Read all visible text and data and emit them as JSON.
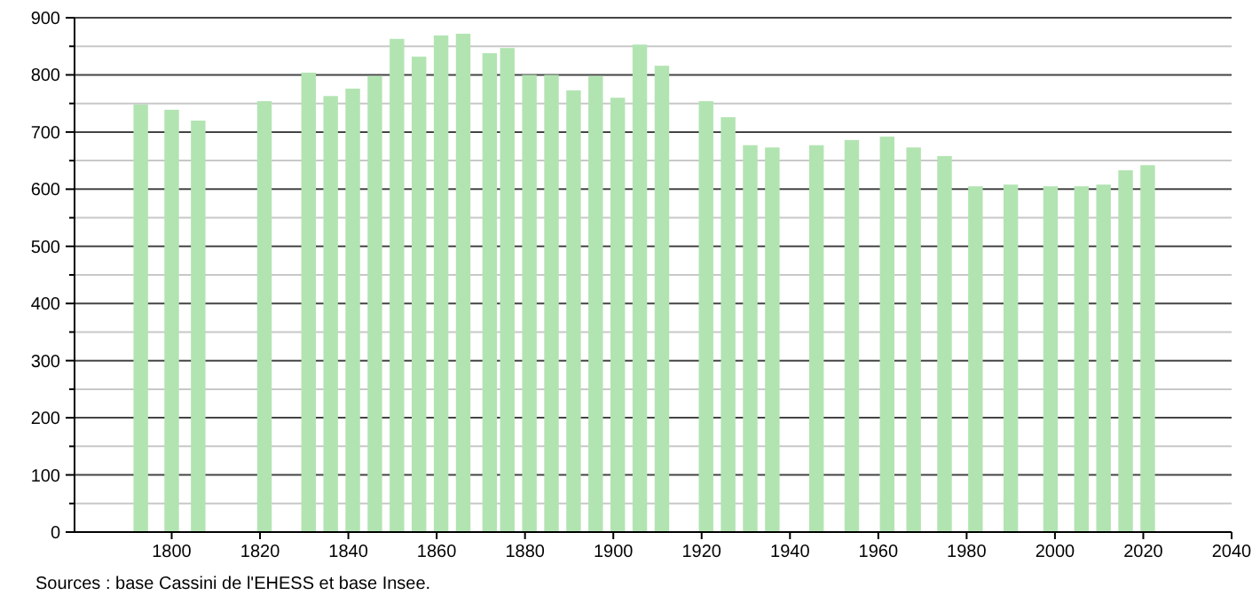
{
  "chart_data": {
    "type": "bar",
    "color": "#b2e4b2",
    "x": [
      1793,
      1800,
      1806,
      1821,
      1831,
      1836,
      1841,
      1846,
      1851,
      1856,
      1861,
      1866,
      1872,
      1876,
      1881,
      1886,
      1891,
      1896,
      1901,
      1906,
      1911,
      1921,
      1926,
      1931,
      1936,
      1946,
      1954,
      1962,
      1968,
      1975,
      1982,
      1990,
      1999,
      2006,
      2011,
      2016,
      2021
    ],
    "values": [
      748,
      739,
      720,
      754,
      804,
      763,
      776,
      798,
      863,
      832,
      869,
      872,
      838,
      847,
      800,
      800,
      773,
      798,
      760,
      853,
      816,
      754,
      726,
      677,
      673,
      677,
      686,
      692,
      673,
      658,
      605,
      608,
      605,
      605,
      608,
      633,
      642
    ],
    "xlim": [
      1778,
      2040
    ],
    "xticks": [
      1800,
      1820,
      1840,
      1860,
      1880,
      1900,
      1920,
      1940,
      1960,
      1980,
      2000,
      2020,
      2040
    ],
    "ylim": [
      0,
      900
    ],
    "yticks": [
      0,
      {
        "value": 50,
        "label": null
      },
      100,
      {
        "value": 150,
        "label": null
      },
      200,
      {
        "value": 250,
        "label": null
      },
      300,
      {
        "value": 350,
        "label": null
      },
      400,
      {
        "value": 450,
        "label": null
      },
      500,
      {
        "value": 550,
        "label": null
      },
      600,
      {
        "value": 650,
        "label": null
      },
      700,
      {
        "value": 750,
        "label": null
      },
      800,
      {
        "value": 850,
        "label": null
      },
      900
    ],
    "grid": true,
    "annotations": [
      "Sources : base Cassini de l'EHESS et base Insee."
    ]
  }
}
